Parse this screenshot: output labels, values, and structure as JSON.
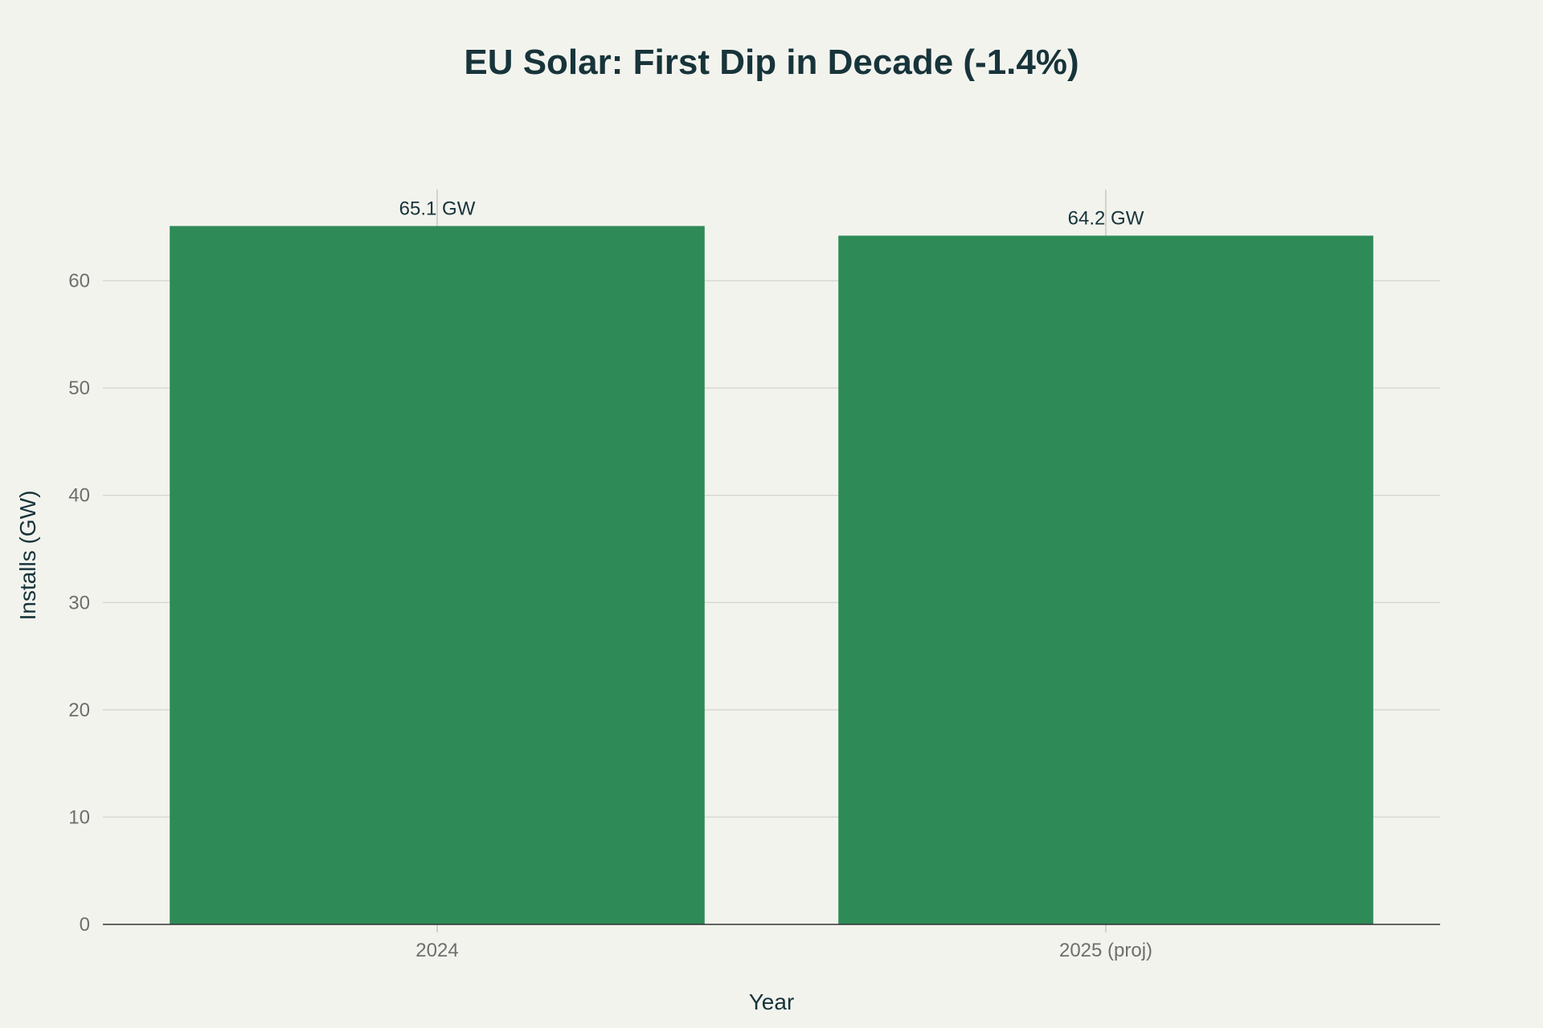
{
  "chart_data": {
    "type": "bar",
    "title": "EU Solar: First Dip in Decade (-1.4%)",
    "xlabel": "Year",
    "ylabel": "Installs (GW)",
    "categories": [
      "2024",
      "2025 (proj)"
    ],
    "values": [
      65.1,
      64.2
    ],
    "data_labels": [
      "65.1 GW",
      "64.2 GW"
    ],
    "ylim": [
      0,
      68.5
    ],
    "yticks": [
      0,
      10,
      20,
      30,
      40,
      50,
      60
    ],
    "grid": true,
    "legend": "none",
    "bar_color": "#2e8b57",
    "background_color": "#f3f3ee",
    "text_color": "#17343a",
    "tick_color": "#6e6e6e"
  }
}
